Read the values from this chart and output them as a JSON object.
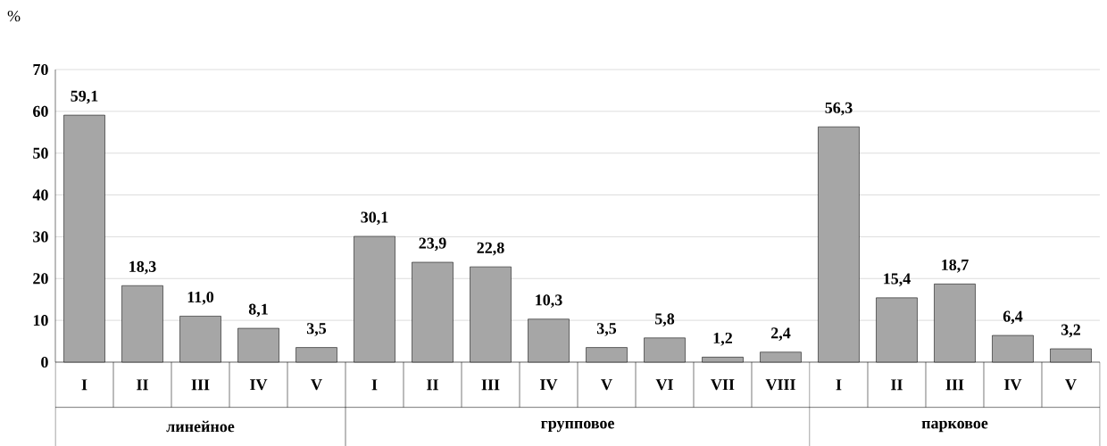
{
  "chart_data": {
    "type": "bar",
    "ylabel": "%",
    "categories": [
      "I",
      "II",
      "III",
      "IV",
      "V",
      "I",
      "II",
      "III",
      "IV",
      "V",
      "VI",
      "VII",
      "VIII",
      "I",
      "II",
      "III",
      "IV",
      "V"
    ],
    "values": [
      59.1,
      18.3,
      11.0,
      8.1,
      3.5,
      30.1,
      23.9,
      22.8,
      10.3,
      3.5,
      5.8,
      1.2,
      2.4,
      56.3,
      15.4,
      18.7,
      6.4,
      3.2
    ],
    "value_labels": [
      "59,1",
      "18,3",
      "11,0",
      "8,1",
      "3,5",
      "30,1",
      "23,9",
      "22,8",
      "10,3",
      "3,5",
      "5,8",
      "1,2",
      "2,4",
      "56,3",
      "15,4",
      "18,7",
      "6,4",
      "3,2"
    ],
    "color": "#a6a6a6",
    "annotations": [
      "линейное",
      "групповое",
      "парковое"
    ],
    "ylim": [
      0,
      70
    ],
    "yticks": [
      0,
      10,
      20,
      30,
      40,
      50,
      60,
      70
    ],
    "grid": "y"
  }
}
